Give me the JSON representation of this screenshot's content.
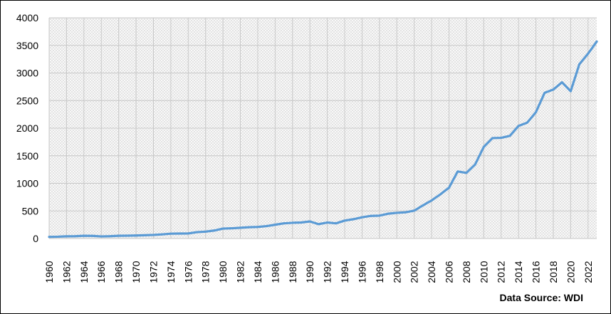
{
  "source_note": "Data Source: WDI",
  "colors": {
    "line": "#5b9bd5",
    "grid": "#c8c8c8",
    "hatch": "#dcdcdc"
  },
  "chart_data": {
    "type": "line",
    "title": "",
    "xlabel": "",
    "ylabel": "",
    "ylim": [
      0,
      4000
    ],
    "yticks": [
      0,
      500,
      1000,
      1500,
      2000,
      2500,
      3000,
      3500,
      4000
    ],
    "xlim": [
      1960,
      2023
    ],
    "xticks": [
      1960,
      1962,
      1964,
      1966,
      1968,
      1970,
      1972,
      1974,
      1976,
      1978,
      1980,
      1982,
      1984,
      1986,
      1988,
      1990,
      1992,
      1994,
      1996,
      1998,
      2000,
      2002,
      2004,
      2006,
      2008,
      2010,
      2012,
      2014,
      2016,
      2018,
      2020,
      2022
    ],
    "grid": true,
    "legend": "none",
    "series": [
      {
        "x": [
          1960,
          1961,
          1962,
          1963,
          1964,
          1965,
          1966,
          1967,
          1968,
          1969,
          1970,
          1971,
          1972,
          1973,
          1974,
          1975,
          1976,
          1977,
          1978,
          1979,
          1980,
          1981,
          1982,
          1983,
          1984,
          1985,
          1986,
          1987,
          1988,
          1989,
          1990,
          1991,
          1992,
          1993,
          1994,
          1995,
          1996,
          1997,
          1998,
          1999,
          2000,
          2001,
          2002,
          2003,
          2004,
          2005,
          2006,
          2007,
          2008,
          2009,
          2010,
          2011,
          2012,
          2013,
          2014,
          2015,
          2016,
          2017,
          2018,
          2019,
          2020,
          2021,
          2022,
          2023
        ],
        "values": [
          30,
          33,
          40,
          42,
          50,
          48,
          38,
          42,
          50,
          52,
          55,
          60,
          65,
          75,
          88,
          90,
          92,
          115,
          125,
          145,
          180,
          185,
          195,
          205,
          210,
          225,
          250,
          275,
          285,
          290,
          310,
          260,
          290,
          275,
          325,
          350,
          385,
          410,
          415,
          450,
          465,
          475,
          505,
          600,
          690,
          800,
          920,
          1215,
          1190,
          1340,
          1660,
          1820,
          1825,
          1860,
          2040,
          2100,
          2290,
          2640,
          2700,
          2830,
          2670,
          3160,
          3350,
          3570
        ]
      }
    ]
  }
}
